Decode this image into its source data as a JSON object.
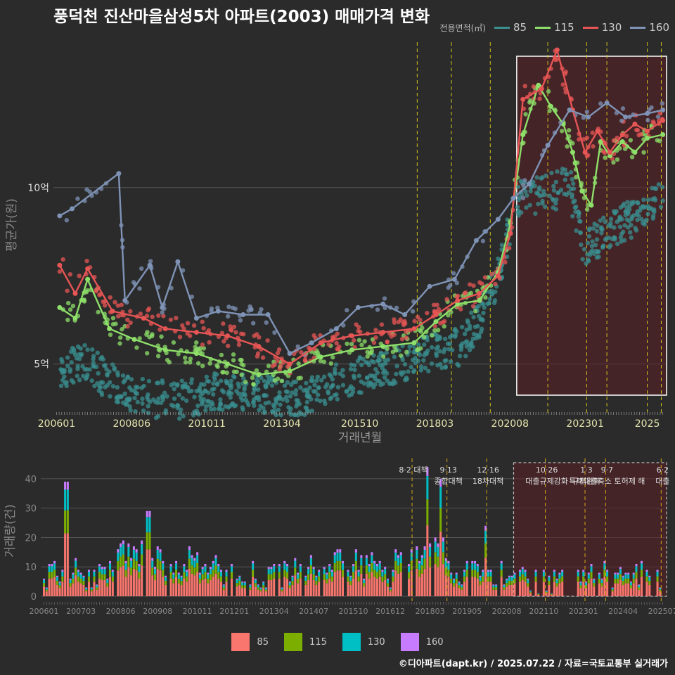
{
  "title": "풍덕천 진산마을삼성5차 아파트(2003) 매매가격 변화",
  "legend": {
    "title": "전용면적(㎡)",
    "items": [
      {
        "label": "85",
        "color": "#3a8f90"
      },
      {
        "label": "115",
        "color": "#8ee06a"
      },
      {
        "label": "130",
        "color": "#e85555"
      },
      {
        "label": "160",
        "color": "#7f93b6"
      }
    ]
  },
  "bar_legend": {
    "items": [
      {
        "label": "85",
        "color": "#f8766d"
      },
      {
        "label": "115",
        "color": "#7cae00"
      },
      {
        "label": "130",
        "color": "#00bfc4"
      },
      {
        "label": "160",
        "color": "#c77cff"
      }
    ]
  },
  "credit": "©디아파트(dapt.kr) / 2025.07.22 / 자료=국토교통부 실거래가",
  "chart_data": [
    {
      "type": "line",
      "title": "풍덕천 진산마을삼성5차 아파트(2003) 매매가격 변화",
      "xlabel": "거래년월",
      "ylabel": "평균가(원)",
      "x_ticks": [
        "200601",
        "200806",
        "201011",
        "201304",
        "201510",
        "201803",
        "202008",
        "202301",
        "2025"
      ],
      "y_ticks": [
        {
          "value": 10,
          "label": "10억"
        },
        {
          "value": 5,
          "label": "5억"
        }
      ],
      "ylim": [
        3.6,
        14.2
      ],
      "y_unit": "억",
      "series": [
        {
          "name": "85",
          "x": [
            2006.1,
            2006.7,
            2007.0,
            2008.0,
            2009.0,
            2010.0,
            2011.0,
            2012.0,
            2013.0,
            2014.0,
            2015.0,
            2016.0,
            2017.0,
            2018.0,
            2019.0,
            2019.5,
            2020.2,
            2020.6,
            2021.0,
            2021.5,
            2022.0,
            2022.5,
            2023.0,
            2023.5,
            2024.0,
            2024.5,
            2025.0,
            2025.5
          ],
          "values": [
            4.8,
            5.0,
            5.0,
            4.3,
            4.0,
            4.0,
            4.2,
            4.2,
            4.1,
            4.1,
            4.5,
            4.8,
            5.0,
            5.3,
            5.5,
            6.1,
            7.5,
            9.0,
            9.8,
            9.8,
            9.9,
            10.1,
            8.2,
            8.6,
            8.9,
            9.1,
            9.4,
            9.7
          ]
        },
        {
          "name": "115",
          "x": [
            2006.1,
            2006.6,
            2007.0,
            2007.7,
            2008.5,
            2009.5,
            2010.5,
            2011.5,
            2012.5,
            2013.5,
            2014.5,
            2015.5,
            2016.5,
            2017.5,
            2018.2,
            2018.9,
            2019.6,
            2020.2,
            2020.6,
            2021.0,
            2021.5,
            2021.9,
            2022.3,
            2022.6,
            2022.9,
            2023.2,
            2023.5,
            2023.8,
            2024.2,
            2024.6,
            2025.0,
            2025.5
          ],
          "values": [
            6.6,
            6.3,
            7.4,
            6.0,
            5.7,
            5.4,
            5.3,
            5.0,
            4.7,
            4.8,
            5.2,
            5.4,
            5.5,
            5.6,
            6.2,
            6.7,
            6.8,
            7.6,
            9.0,
            11.5,
            12.9,
            12.3,
            11.8,
            11.0,
            9.9,
            9.5,
            11.3,
            10.9,
            11.3,
            11.0,
            11.4,
            11.5
          ]
        },
        {
          "name": "130",
          "x": [
            2006.1,
            2006.6,
            2007.0,
            2007.8,
            2008.8,
            2009.5,
            2010.5,
            2011.5,
            2012.5,
            2013.5,
            2014.5,
            2015.5,
            2016.5,
            2017.5,
            2018.2,
            2018.9,
            2019.6,
            2020.2,
            2020.6,
            2021.0,
            2021.6,
            2022.1,
            2022.6,
            2023.0,
            2023.4,
            2023.8,
            2024.2,
            2024.6,
            2025.0,
            2025.5
          ],
          "values": [
            7.8,
            7.0,
            7.7,
            6.5,
            6.3,
            6.0,
            5.9,
            5.8,
            5.5,
            5.0,
            5.6,
            5.8,
            5.9,
            6.0,
            6.4,
            6.8,
            7.0,
            7.5,
            8.7,
            12.5,
            12.8,
            13.9,
            12.2,
            11.0,
            11.6,
            11.0,
            11.5,
            11.8,
            11.6,
            11.9
          ]
        },
        {
          "name": "160",
          "x": [
            2006.1,
            2006.5,
            2008.0,
            2008.2,
            2009.0,
            2009.4,
            2009.9,
            2010.5,
            2011.2,
            2012.0,
            2012.8,
            2013.5,
            2014.2,
            2015.0,
            2015.7,
            2016.5,
            2017.2,
            2018.0,
            2018.8,
            2019.5,
            2020.2,
            2020.7,
            2021.2,
            2021.8,
            2022.5,
            2023.1,
            2023.7,
            2024.3,
            2025.0,
            2025.5
          ],
          "values": [
            9.2,
            9.4,
            10.4,
            6.8,
            7.8,
            6.6,
            7.9,
            6.3,
            6.5,
            6.4,
            6.4,
            5.3,
            5.6,
            6.0,
            6.6,
            6.7,
            6.4,
            7.2,
            7.4,
            8.5,
            9.1,
            9.7,
            10.1,
            11.2,
            12.2,
            12.0,
            12.4,
            12.0,
            12.1,
            12.2
          ]
        }
      ],
      "highlight_range": [
        2020.8,
        2025.6
      ],
      "policy_lines": [
        2017.6,
        2018.7,
        2019.95,
        2021.8,
        2023.05,
        2023.7,
        2025.0,
        2025.45
      ]
    },
    {
      "type": "bar",
      "title": "",
      "xlabel": "",
      "ylabel": "거래량(건)",
      "x_ticks": [
        "200601",
        "200703",
        "200806",
        "200908",
        "201011",
        "201201",
        "201304",
        "201407",
        "201510",
        "201612",
        "201803",
        "201905",
        "202008",
        "202110",
        "202301",
        "202404",
        "202507"
      ],
      "y_ticks": [
        0,
        10,
        20,
        30,
        40
      ],
      "ylim": [
        0,
        45
      ],
      "stacked": true,
      "series_names": [
        "85",
        "115",
        "130",
        "160"
      ],
      "notable": [
        {
          "x": 2006.7,
          "total": 39
        },
        {
          "x": 2009.3,
          "total": 29
        },
        {
          "x": 2018.1,
          "total": 44
        },
        {
          "x": 2018.5,
          "total": 40
        },
        {
          "x": 2019.9,
          "total": 24
        }
      ],
      "highlight_range": [
        2020.8,
        2025.6
      ],
      "annotations": [
        {
          "x": 2017.6,
          "date": "8·2 대책",
          "label": ""
        },
        {
          "x": 2018.7,
          "date": "9·13",
          "label": "종합대책"
        },
        {
          "x": 2019.95,
          "date": "12·16",
          "label": "18차대책"
        },
        {
          "x": 2021.8,
          "date": "10·26",
          "label": "대출규제강화"
        },
        {
          "x": 2023.05,
          "date": "1·3",
          "label": "규제완화"
        },
        {
          "x": 2023.7,
          "date": "9·7",
          "label": "특례대출축소 토허제 해"
        },
        {
          "x": 2025.45,
          "date": "6·2",
          "label": "대출"
        }
      ]
    }
  ]
}
